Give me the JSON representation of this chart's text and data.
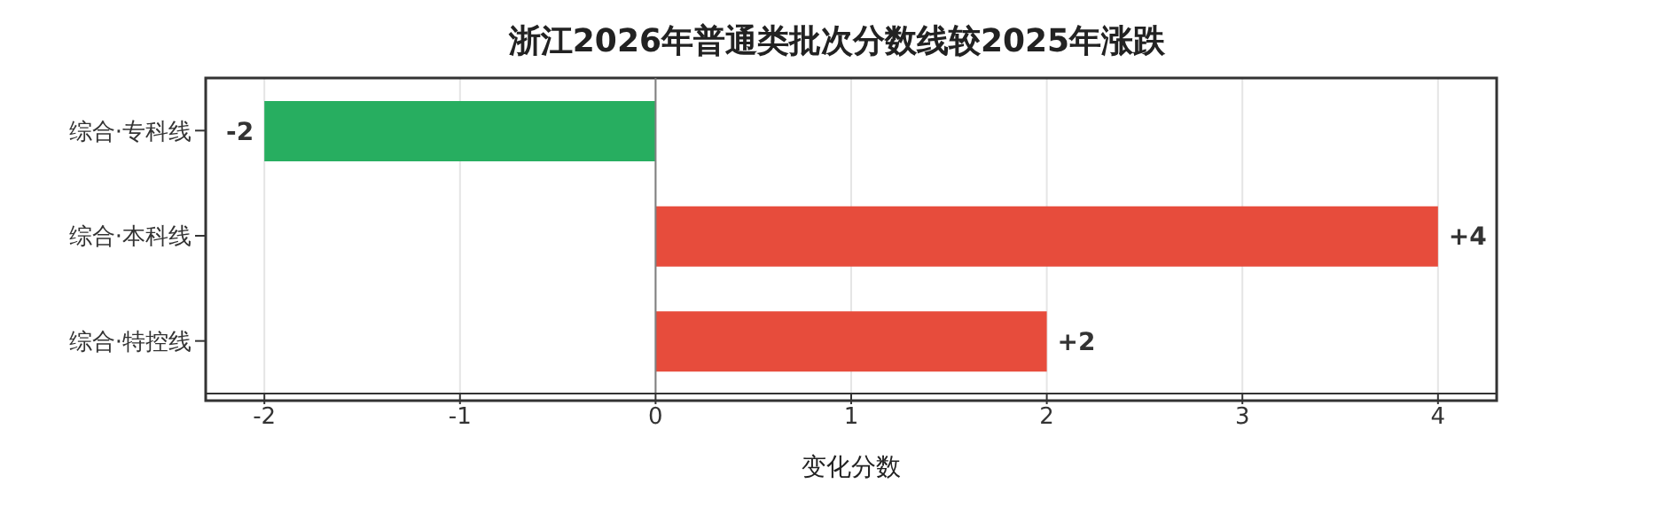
{
  "chart_data": {
    "type": "bar",
    "orientation": "horizontal",
    "title": "浙江2026年普通类批次分数线较2025年涨跌",
    "xlabel": "变化分数",
    "categories": [
      "综合·专科线",
      "综合·本科线",
      "综合·特控线"
    ],
    "values": [
      -2,
      4,
      2
    ],
    "colors": [
      "#27ae60",
      "#e74c3c",
      "#e74c3c"
    ],
    "value_labels": [
      "-2",
      "+4",
      "+2"
    ],
    "xlim": [
      -2.3,
      4.3
    ],
    "xticks": [
      -2,
      -1,
      0,
      1,
      2,
      3,
      4
    ],
    "grid": "x",
    "ref_lines": [
      {
        "axis": "x",
        "value": 0,
        "color": "#808080"
      }
    ]
  }
}
